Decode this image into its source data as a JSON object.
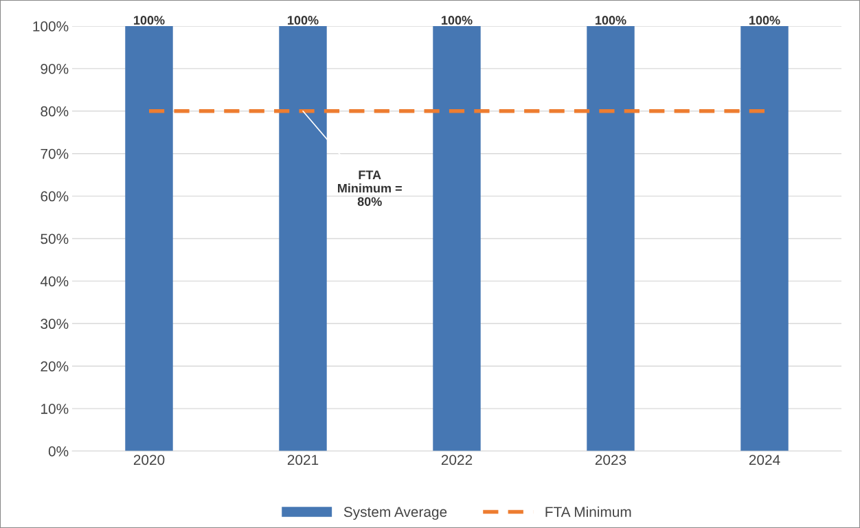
{
  "chart_data": {
    "type": "bar",
    "categories": [
      "2020",
      "2021",
      "2022",
      "2023",
      "2024"
    ],
    "series": [
      {
        "name": "System Average",
        "color": "#4677b3",
        "values": [
          100,
          100,
          100,
          100,
          100
        ],
        "value_labels": [
          "100%",
          "100%",
          "100%",
          "100%",
          "100%"
        ]
      },
      {
        "name": "FTA Minimum",
        "type": "line",
        "color": "#ed7d31",
        "line_style": "dashed",
        "values": [
          80,
          80,
          80,
          80,
          80
        ]
      }
    ],
    "annotations": [
      {
        "text": "FTA\nMinimum =\n80%",
        "x": "2021",
        "y": 80
      }
    ],
    "ylim": [
      0,
      100
    ],
    "yticks": [
      {
        "value": 0,
        "label": "0%"
      },
      {
        "value": 10,
        "label": "10%"
      },
      {
        "value": 20,
        "label": "20%"
      },
      {
        "value": 30,
        "label": "30%"
      },
      {
        "value": 40,
        "label": "40%"
      },
      {
        "value": 50,
        "label": "50%"
      },
      {
        "value": 60,
        "label": "60%"
      },
      {
        "value": 70,
        "label": "70%"
      },
      {
        "value": 80,
        "label": "80%"
      },
      {
        "value": 90,
        "label": "90%"
      },
      {
        "value": 100,
        "label": "100%"
      }
    ],
    "grid": "y",
    "legend": "bottom"
  }
}
